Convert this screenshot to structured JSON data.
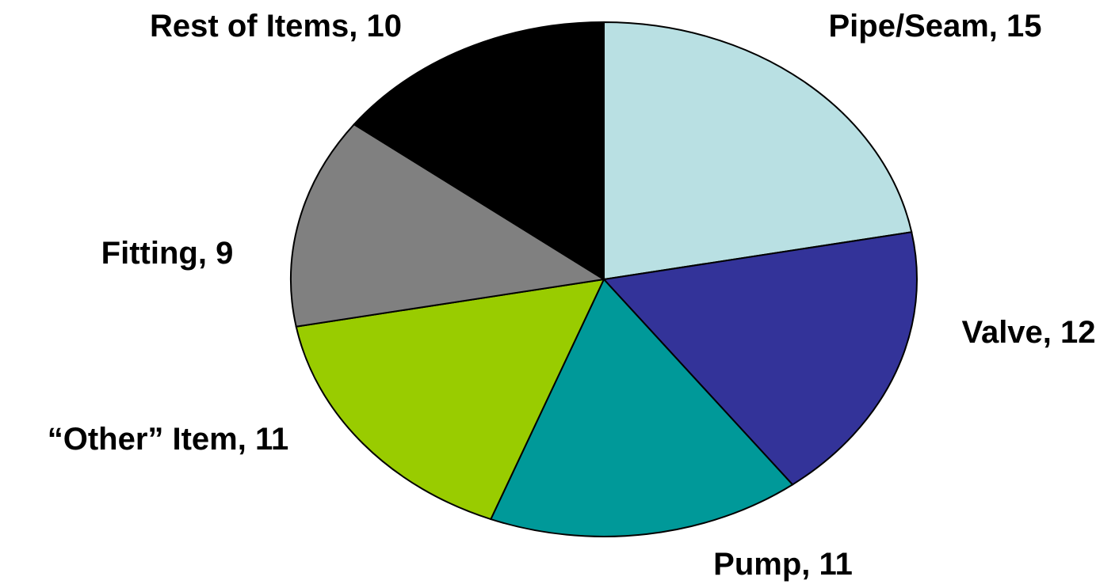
{
  "chart_data": {
    "type": "pie",
    "categories": [
      "Pipe/Seam",
      "Valve",
      "Pump",
      "“Other” Item",
      "Fitting",
      "Rest of Items"
    ],
    "values": [
      15,
      12,
      11,
      11,
      9,
      10
    ],
    "colors": [
      "#b9e0e3",
      "#333399",
      "#009999",
      "#99cc00",
      "#808080",
      "#000000"
    ],
    "label_separator": ", "
  }
}
